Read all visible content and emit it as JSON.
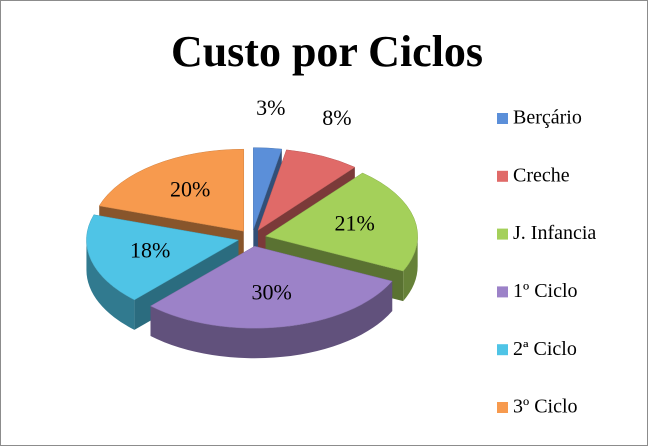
{
  "chart_data": {
    "type": "pie",
    "title": "Custo por Ciclos",
    "categories": [
      "Berçário",
      "Creche",
      "J. Infancia",
      "1º Ciclo",
      "2ª Ciclo",
      "3º Ciclo"
    ],
    "values": [
      3,
      8,
      21,
      30,
      18,
      20
    ],
    "value_labels": [
      "3%",
      "8%",
      "21%",
      "30%",
      "18%",
      "20%"
    ],
    "colors": [
      "#5b8fd9",
      "#e06a68",
      "#a4d05a",
      "#9c82c8",
      "#4fc4e6",
      "#f79a4e"
    ],
    "legend": "right"
  }
}
